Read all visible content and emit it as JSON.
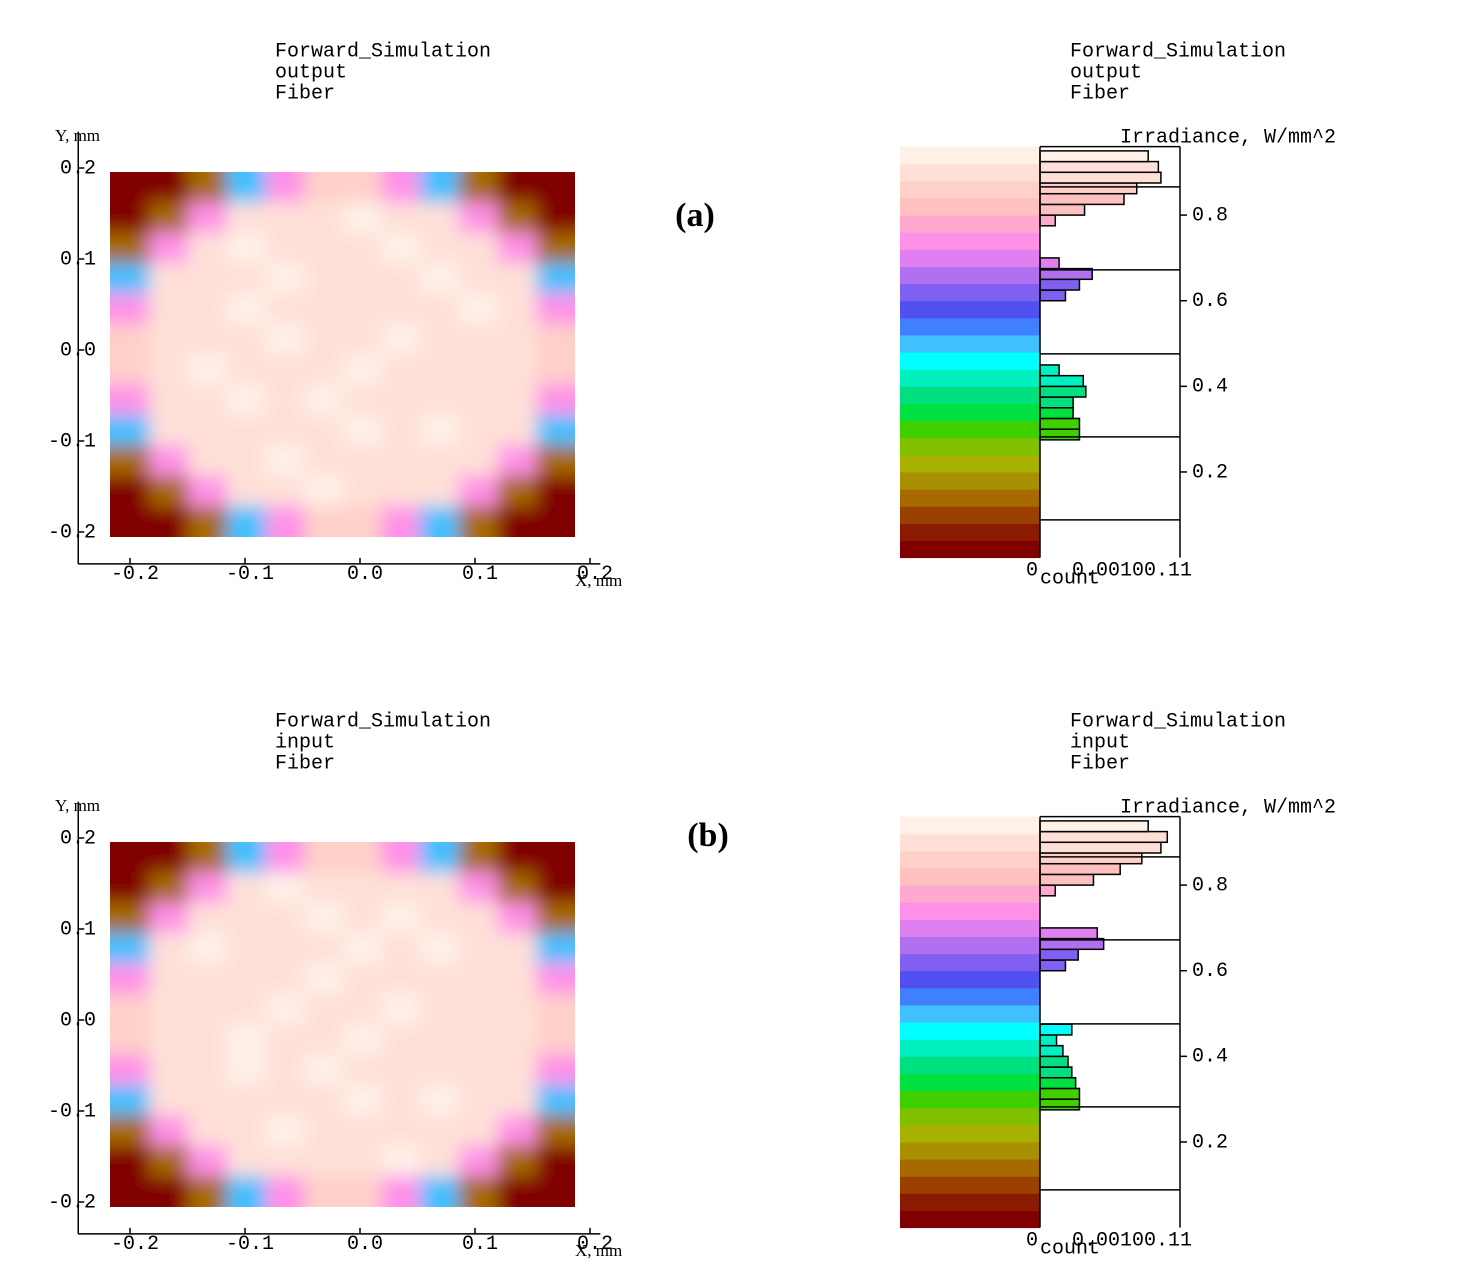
{
  "chart_data": [
    {
      "type": "heatmap",
      "title": [
        "Forward_Simulation",
        "output",
        "Fiber"
      ],
      "annotation": "(a)",
      "xlabel": "X, mm",
      "ylabel": "Y, mm",
      "xlim": [
        -0.245,
        0.209
      ],
      "ylim": [
        -0.235,
        0.24
      ],
      "xticks": [
        -0.2,
        -0.1,
        {
          "value": 0,
          "label": "0.0"
        },
        0.1,
        0.2
      ],
      "yticks": [
        -0.2,
        -0.1,
        {
          "value": 0,
          "label": "0.0"
        },
        0.1,
        0.2
      ],
      "extent": [
        -0.217,
        0.187,
        -0.205,
        0.196
      ],
      "z": [
        [
          0.02,
          0.02,
          0.15,
          0.5,
          0.75,
          0.85,
          0.85,
          0.75,
          0.5,
          0.15,
          0.02,
          0.02
        ],
        [
          0.02,
          0.15,
          0.75,
          0.9,
          0.91,
          0.89,
          0.92,
          0.9,
          0.88,
          0.75,
          0.15,
          0.02
        ],
        [
          0.15,
          0.75,
          0.9,
          0.92,
          0.88,
          0.91,
          0.9,
          0.93,
          0.89,
          0.9,
          0.75,
          0.15
        ],
        [
          0.5,
          0.9,
          0.91,
          0.88,
          0.92,
          0.9,
          0.89,
          0.91,
          0.93,
          0.88,
          0.9,
          0.5
        ],
        [
          0.75,
          0.9,
          0.89,
          0.92,
          0.9,
          0.88,
          0.91,
          0.9,
          0.89,
          0.92,
          0.9,
          0.75
        ],
        [
          0.85,
          0.91,
          0.9,
          0.89,
          0.93,
          0.9,
          0.88,
          0.92,
          0.9,
          0.89,
          0.91,
          0.85
        ],
        [
          0.85,
          0.9,
          0.92,
          0.9,
          0.89,
          0.91,
          0.93,
          0.89,
          0.9,
          0.91,
          0.9,
          0.85
        ],
        [
          0.75,
          0.89,
          0.91,
          0.93,
          0.9,
          0.92,
          0.9,
          0.88,
          0.91,
          0.9,
          0.89,
          0.75
        ],
        [
          0.5,
          0.9,
          0.88,
          0.91,
          0.9,
          0.89,
          0.92,
          0.9,
          0.93,
          0.89,
          0.9,
          0.5
        ],
        [
          0.15,
          0.75,
          0.9,
          0.89,
          0.92,
          0.9,
          0.91,
          0.89,
          0.9,
          0.9,
          0.75,
          0.15
        ],
        [
          0.02,
          0.15,
          0.75,
          0.9,
          0.89,
          0.92,
          0.9,
          0.91,
          0.88,
          0.75,
          0.15,
          0.02
        ],
        [
          0.02,
          0.02,
          0.15,
          0.5,
          0.75,
          0.86,
          0.84,
          0.75,
          0.5,
          0.15,
          0.02,
          0.02
        ]
      ]
    },
    {
      "type": "histogram",
      "title": [
        "Forward_Simulation",
        "output",
        "Fiber"
      ],
      "xlabel": "count",
      "ylabel": "Irradiance, W/mm^2",
      "xlim": [
        0,
        0.11
      ],
      "ylim": [
        0,
        0.96
      ],
      "xticks": [
        0,
        {
          "value": 0.11,
          "label": "0.00100.11"
        }
      ],
      "yticks": [
        0.2,
        0.4,
        0.6,
        0.8
      ],
      "levels": [
        0.088,
        0.282,
        0.476,
        0.672,
        0.866
      ],
      "bins": [
        0.275,
        0.3,
        0.325,
        0.35,
        0.375,
        0.4,
        0.425,
        0.45,
        0.475,
        0.5,
        0.525,
        0.55,
        0.575,
        0.6,
        0.625,
        0.65,
        0.675,
        0.7,
        0.725,
        0.75,
        0.775,
        0.8,
        0.825,
        0.85,
        0.875,
        0.9,
        0.925,
        0.95
      ],
      "counts": [
        0.031,
        0.031,
        0.026,
        0.026,
        0.036,
        0.034,
        0.015,
        0,
        0,
        0,
        0,
        0,
        0,
        0.02,
        0.031,
        0.041,
        0.015,
        0,
        0,
        0,
        0.012,
        0.035,
        0.066,
        0.076,
        0.095,
        0.093,
        0.085
      ],
      "colormap": [
        "#800000",
        "#8a1a00",
        "#9a4000",
        "#a86a00",
        "#a89000",
        "#a8b000",
        "#80c000",
        "#40d000",
        "#00e040",
        "#00e080",
        "#00f0c0",
        "#00ffff",
        "#40c0ff",
        "#4080ff",
        "#5050f0",
        "#8060f0",
        "#b070f0",
        "#e080f0",
        "#ff90e8",
        "#ffa8d0",
        "#ffc0c0",
        "#ffd0c8",
        "#ffe0d8",
        "#fff0e8"
      ]
    },
    {
      "type": "heatmap",
      "title": [
        "Forward_Simulation",
        "input",
        "Fiber"
      ],
      "annotation": "(b)",
      "xlabel": "X, mm",
      "ylabel": "Y, mm",
      "xlim": [
        -0.245,
        0.209
      ],
      "ylim": [
        -0.235,
        0.24
      ],
      "xticks": [
        -0.2,
        -0.1,
        {
          "value": 0,
          "label": "0.0"
        },
        0.1,
        0.2
      ],
      "yticks": [
        -0.2,
        -0.1,
        {
          "value": 0,
          "label": "0.0"
        },
        0.1,
        0.2
      ],
      "extent": [
        -0.217,
        0.187,
        -0.205,
        0.196
      ],
      "z": [
        [
          0.02,
          0.02,
          0.15,
          0.5,
          0.75,
          0.86,
          0.85,
          0.75,
          0.5,
          0.15,
          0.02,
          0.02
        ],
        [
          0.02,
          0.15,
          0.75,
          0.89,
          0.92,
          0.9,
          0.91,
          0.9,
          0.89,
          0.75,
          0.15,
          0.02
        ],
        [
          0.15,
          0.75,
          0.9,
          0.91,
          0.89,
          0.92,
          0.9,
          0.92,
          0.9,
          0.89,
          0.75,
          0.15
        ],
        [
          0.5,
          0.9,
          0.92,
          0.89,
          0.91,
          0.9,
          0.93,
          0.9,
          0.92,
          0.89,
          0.9,
          0.5
        ],
        [
          0.75,
          0.9,
          0.9,
          0.91,
          0.89,
          0.92,
          0.9,
          0.89,
          0.9,
          0.91,
          0.9,
          0.75
        ],
        [
          0.85,
          0.9,
          0.91,
          0.9,
          0.92,
          0.89,
          0.9,
          0.93,
          0.89,
          0.9,
          0.91,
          0.85
        ],
        [
          0.85,
          0.91,
          0.9,
          0.92,
          0.9,
          0.9,
          0.92,
          0.9,
          0.91,
          0.9,
          0.9,
          0.85
        ],
        [
          0.75,
          0.9,
          0.9,
          0.92,
          0.91,
          0.93,
          0.89,
          0.9,
          0.9,
          0.91,
          0.89,
          0.75
        ],
        [
          0.5,
          0.89,
          0.9,
          0.9,
          0.91,
          0.9,
          0.93,
          0.9,
          0.92,
          0.9,
          0.9,
          0.5
        ],
        [
          0.15,
          0.75,
          0.9,
          0.9,
          0.93,
          0.89,
          0.9,
          0.9,
          0.91,
          0.9,
          0.75,
          0.15
        ],
        [
          0.02,
          0.15,
          0.75,
          0.9,
          0.9,
          0.91,
          0.9,
          0.92,
          0.89,
          0.75,
          0.15,
          0.02
        ],
        [
          0.02,
          0.02,
          0.15,
          0.5,
          0.75,
          0.85,
          0.86,
          0.75,
          0.5,
          0.15,
          0.02,
          0.02
        ]
      ]
    },
    {
      "type": "histogram",
      "title": [
        "Forward_Simulation",
        "input",
        "Fiber"
      ],
      "xlabel": "count",
      "ylabel": "Irradiance, W/mm^2",
      "xlim": [
        0,
        0.11
      ],
      "ylim": [
        0,
        0.96
      ],
      "xticks": [
        0,
        {
          "value": 0.11,
          "label": "0.00100.11"
        }
      ],
      "yticks": [
        0.2,
        0.4,
        0.6,
        0.8
      ],
      "levels": [
        0.088,
        0.282,
        0.476,
        0.672,
        0.866
      ],
      "bins": [
        0.275,
        0.3,
        0.325,
        0.35,
        0.375,
        0.4,
        0.425,
        0.45,
        0.475,
        0.5,
        0.525,
        0.55,
        0.575,
        0.6,
        0.625,
        0.65,
        0.675,
        0.7,
        0.725,
        0.75,
        0.775,
        0.8,
        0.825,
        0.85,
        0.875,
        0.9,
        0.925,
        0.95
      ],
      "counts": [
        0.031,
        0.031,
        0.028,
        0.025,
        0.022,
        0.018,
        0.013,
        0.025,
        0,
        0,
        0,
        0,
        0,
        0.02,
        0.03,
        0.05,
        0.045,
        0,
        0,
        0,
        0.012,
        0.042,
        0.063,
        0.08,
        0.095,
        0.1,
        0.085
      ],
      "colormap": [
        "#800000",
        "#8a1a00",
        "#9a4000",
        "#a86a00",
        "#a89000",
        "#a8b000",
        "#80c000",
        "#40d000",
        "#00e040",
        "#00e080",
        "#00f0c0",
        "#00ffff",
        "#40c0ff",
        "#4080ff",
        "#5050f0",
        "#8060f0",
        "#b070f0",
        "#e080f0",
        "#ff90e8",
        "#ffa8d0",
        "#ffc0c0",
        "#ffd0c8",
        "#ffe0d8",
        "#fff0e8"
      ]
    }
  ]
}
